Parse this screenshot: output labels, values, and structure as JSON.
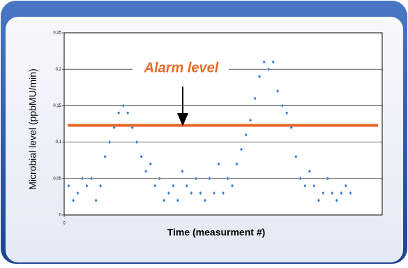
{
  "chart_data": {
    "type": "scatter",
    "y_label": "Microbial level (ppbMU/min)",
    "x_label": "Time (measurment #)",
    "annotation": "Alarm level",
    "alarm_level": 0.123,
    "alarm_color": "#e8692c",
    "color": "#3f7fd0",
    "x": [
      1,
      2,
      3,
      4,
      5,
      6,
      7,
      8,
      9,
      10,
      11,
      12,
      13,
      14,
      15,
      16,
      17,
      18,
      19,
      20,
      21,
      22,
      23,
      24,
      25,
      26,
      27,
      28,
      29,
      30,
      31,
      32,
      33,
      34,
      35,
      36,
      37,
      38,
      39,
      40,
      41,
      42,
      43,
      44,
      45,
      46,
      47,
      48,
      49,
      50,
      51,
      52,
      53,
      54,
      55,
      56,
      57,
      58,
      59,
      60,
      61,
      62,
      63
    ],
    "values": [
      0.04,
      0.02,
      0.03,
      0.05,
      0.04,
      0.05,
      0.02,
      0.04,
      0.08,
      0.1,
      0.12,
      0.14,
      0.15,
      0.14,
      0.12,
      0.1,
      0.08,
      0.06,
      0.07,
      0.04,
      0.05,
      0.02,
      0.03,
      0.04,
      0.02,
      0.06,
      0.04,
      0.03,
      0.05,
      0.03,
      0.02,
      0.05,
      0.03,
      0.07,
      0.03,
      0.05,
      0.04,
      0.07,
      0.09,
      0.11,
      0.13,
      0.16,
      0.19,
      0.21,
      0.2,
      0.21,
      0.17,
      0.15,
      0.14,
      0.12,
      0.08,
      0.05,
      0.04,
      0.06,
      0.04,
      0.02,
      0.03,
      0.05,
      0.03,
      0.02,
      0.03,
      0.04,
      0.03
    ],
    "xlim": [
      0,
      70
    ],
    "xticks": [
      0
    ],
    "ylim": [
      0,
      0.25
    ],
    "yticks": [
      0,
      {
        "value": 0.05,
        "label": "0,05"
      },
      {
        "value": 0.1,
        "label": "0,1"
      },
      {
        "value": 0.15,
        "label": "0,15"
      },
      {
        "value": 0.2,
        "label": "0,2"
      },
      {
        "value": 0.25,
        "label": "0,25"
      }
    ],
    "grid": true
  }
}
